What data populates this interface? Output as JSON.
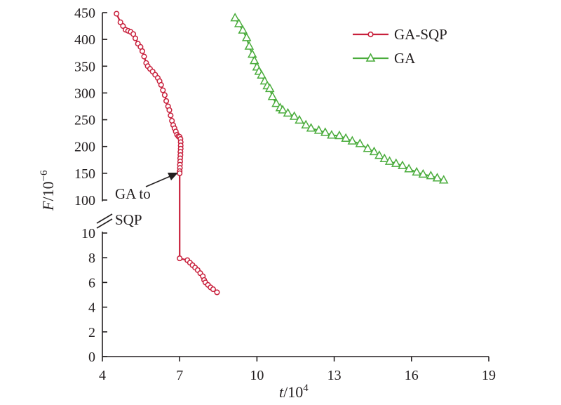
{
  "colors": {
    "ga_sqp": "#c8203c",
    "ga": "#4aac3c",
    "axis": "#231f20"
  },
  "chart_data": {
    "type": "line",
    "x_axis": {
      "label_italic": "t",
      "label_rest": "/10",
      "label_exp": "4",
      "range": [
        4,
        19
      ],
      "ticks": [
        4,
        7,
        10,
        13,
        16,
        19
      ]
    },
    "y_axis": {
      "label_italic": "F",
      "label_rest": "/10",
      "label_exp": "−6",
      "broken": true,
      "lower_range": [
        0,
        10
      ],
      "upper_range": [
        100,
        450
      ],
      "lower_ticks": [
        0,
        2,
        4,
        6,
        8,
        10
      ],
      "upper_ticks": [
        100,
        150,
        200,
        250,
        300,
        350,
        400,
        450
      ]
    },
    "legend": {
      "position": "top-right"
    },
    "annotation": {
      "line1": "GA to",
      "line2": "SQP",
      "x": 7.0,
      "y": 150
    },
    "series": [
      {
        "name": "GA-SQP",
        "marker": "circle",
        "points": [
          [
            4.55,
            448
          ],
          [
            4.7,
            432
          ],
          [
            4.8,
            425
          ],
          [
            4.9,
            418
          ],
          [
            5.0,
            416
          ],
          [
            5.1,
            414
          ],
          [
            5.2,
            410
          ],
          [
            5.28,
            402
          ],
          [
            5.38,
            392
          ],
          [
            5.48,
            386
          ],
          [
            5.55,
            378
          ],
          [
            5.62,
            368
          ],
          [
            5.7,
            356
          ],
          [
            5.76,
            350
          ],
          [
            5.85,
            345
          ],
          [
            5.95,
            340
          ],
          [
            6.05,
            334
          ],
          [
            6.15,
            328
          ],
          [
            6.22,
            322
          ],
          [
            6.28,
            315
          ],
          [
            6.35,
            305
          ],
          [
            6.42,
            296
          ],
          [
            6.48,
            285
          ],
          [
            6.55,
            275
          ],
          [
            6.6,
            268
          ],
          [
            6.65,
            258
          ],
          [
            6.7,
            248
          ],
          [
            6.75,
            240
          ],
          [
            6.8,
            234
          ],
          [
            6.85,
            228
          ],
          [
            6.9,
            222
          ],
          [
            6.95,
            219
          ],
          [
            7.0,
            218
          ],
          [
            7.03,
            214
          ],
          [
            7.04,
            208
          ],
          [
            7.04,
            202
          ],
          [
            7.04,
            196
          ],
          [
            7.03,
            190
          ],
          [
            7.03,
            184
          ],
          [
            7.02,
            178
          ],
          [
            7.02,
            172
          ],
          [
            7.01,
            166
          ],
          [
            7.01,
            160
          ],
          [
            7.0,
            154
          ],
          [
            7.0,
            150
          ],
          [
            7.0,
            7.95
          ],
          [
            7.3,
            7.8
          ],
          [
            7.4,
            7.6
          ],
          [
            7.5,
            7.4
          ],
          [
            7.6,
            7.2
          ],
          [
            7.7,
            7.0
          ],
          [
            7.8,
            6.75
          ],
          [
            7.9,
            6.5
          ],
          [
            7.95,
            6.2
          ],
          [
            8.0,
            6.0
          ],
          [
            8.1,
            5.8
          ],
          [
            8.2,
            5.6
          ],
          [
            8.3,
            5.45
          ],
          [
            8.45,
            5.2
          ]
        ]
      },
      {
        "name": "GA",
        "marker": "triangle",
        "points": [
          [
            9.15,
            440
          ],
          [
            9.3,
            429
          ],
          [
            9.45,
            417
          ],
          [
            9.6,
            403
          ],
          [
            9.7,
            387
          ],
          [
            9.82,
            372
          ],
          [
            9.9,
            360
          ],
          [
            10.0,
            348
          ],
          [
            10.08,
            340
          ],
          [
            10.18,
            333
          ],
          [
            10.3,
            322
          ],
          [
            10.4,
            313
          ],
          [
            10.5,
            308
          ],
          [
            10.6,
            293
          ],
          [
            10.75,
            280
          ],
          [
            10.9,
            272
          ],
          [
            11.0,
            268
          ],
          [
            11.2,
            262
          ],
          [
            11.45,
            256
          ],
          [
            11.65,
            249
          ],
          [
            11.9,
            240
          ],
          [
            12.1,
            234
          ],
          [
            12.4,
            230
          ],
          [
            12.65,
            226
          ],
          [
            12.9,
            221
          ],
          [
            13.2,
            220
          ],
          [
            13.45,
            215
          ],
          [
            13.7,
            210
          ],
          [
            14.0,
            205
          ],
          [
            14.3,
            196
          ],
          [
            14.55,
            190
          ],
          [
            14.75,
            183
          ],
          [
            14.95,
            177
          ],
          [
            15.15,
            172
          ],
          [
            15.4,
            168
          ],
          [
            15.65,
            164
          ],
          [
            15.9,
            158
          ],
          [
            16.2,
            152
          ],
          [
            16.45,
            148
          ],
          [
            16.75,
            145
          ],
          [
            17.0,
            141
          ],
          [
            17.25,
            137
          ]
        ]
      }
    ]
  }
}
